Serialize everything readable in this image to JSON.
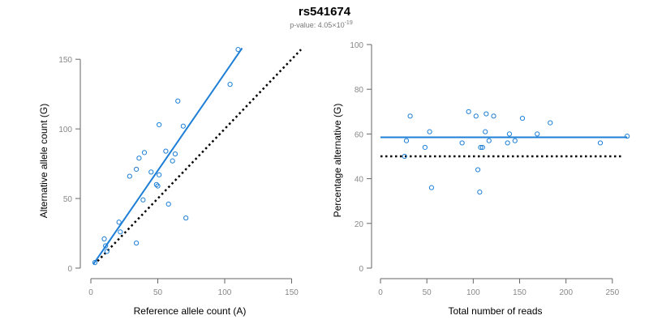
{
  "figure": {
    "title": "rs541674",
    "pvalue_prefix": "p-value: 4.05×10",
    "pvalue_exponent": "-19"
  },
  "colors": {
    "fit": "#1e7fd6",
    "points": "#1e7fd6",
    "reference": "#000000",
    "axis": "#666666"
  },
  "chart_data": [
    {
      "type": "scatter",
      "xlabel": "Reference allele count (A)",
      "ylabel": "Alternative allele count (G)",
      "xlim": [
        0,
        160
      ],
      "ylim": [
        0,
        160
      ],
      "xticks": [
        0,
        50,
        100,
        150
      ],
      "yticks": [
        0,
        50,
        100,
        150
      ],
      "points": [
        [
          3,
          4
        ],
        [
          10,
          21
        ],
        [
          11,
          16
        ],
        [
          12,
          12
        ],
        [
          21,
          33
        ],
        [
          22,
          26
        ],
        [
          29,
          66
        ],
        [
          34,
          18
        ],
        [
          34,
          71
        ],
        [
          36,
          79
        ],
        [
          39,
          49
        ],
        [
          40,
          83
        ],
        [
          45,
          69
        ],
        [
          49,
          60
        ],
        [
          51,
          67
        ],
        [
          51,
          103
        ],
        [
          50,
          59
        ],
        [
          56,
          84
        ],
        [
          58,
          46
        ],
        [
          61,
          77
        ],
        [
          63,
          82
        ],
        [
          65,
          120
        ],
        [
          69,
          102
        ],
        [
          71,
          36
        ],
        [
          104,
          132
        ],
        [
          110,
          157
        ]
      ],
      "fit_line": {
        "x": [
          2,
          113
        ],
        "y": [
          3,
          158
        ]
      },
      "reference_line": {
        "x": [
          5,
          157
        ],
        "y": [
          5,
          157
        ]
      }
    },
    {
      "type": "scatter",
      "xlabel": "Total number of reads",
      "ylabel": "Percentage alternative (G)",
      "xlim": [
        0,
        265
      ],
      "ylim": [
        0,
        100
      ],
      "xticks": [
        0,
        50,
        100,
        150,
        200,
        250
      ],
      "yticks": [
        0,
        20,
        40,
        60,
        80,
        100
      ],
      "points": [
        [
          26,
          50
        ],
        [
          28,
          57
        ],
        [
          32,
          68
        ],
        [
          48,
          54
        ],
        [
          53,
          61
        ],
        [
          55,
          36
        ],
        [
          88,
          56
        ],
        [
          95,
          70
        ],
        [
          103,
          68
        ],
        [
          105,
          44
        ],
        [
          107,
          34
        ],
        [
          108,
          54
        ],
        [
          110,
          54
        ],
        [
          113,
          61
        ],
        [
          114,
          69
        ],
        [
          117,
          57
        ],
        [
          122,
          68
        ],
        [
          137,
          56
        ],
        [
          139,
          60
        ],
        [
          145,
          57
        ],
        [
          153,
          67
        ],
        [
          169,
          60
        ],
        [
          183,
          65
        ],
        [
          237,
          56
        ],
        [
          266,
          59
        ]
      ],
      "fit_line": {
        "x": [
          0,
          266
        ],
        "y": [
          58.5,
          58.5
        ]
      },
      "reference_line": {
        "x": [
          0,
          262
        ],
        "y": [
          50,
          50
        ]
      }
    }
  ]
}
